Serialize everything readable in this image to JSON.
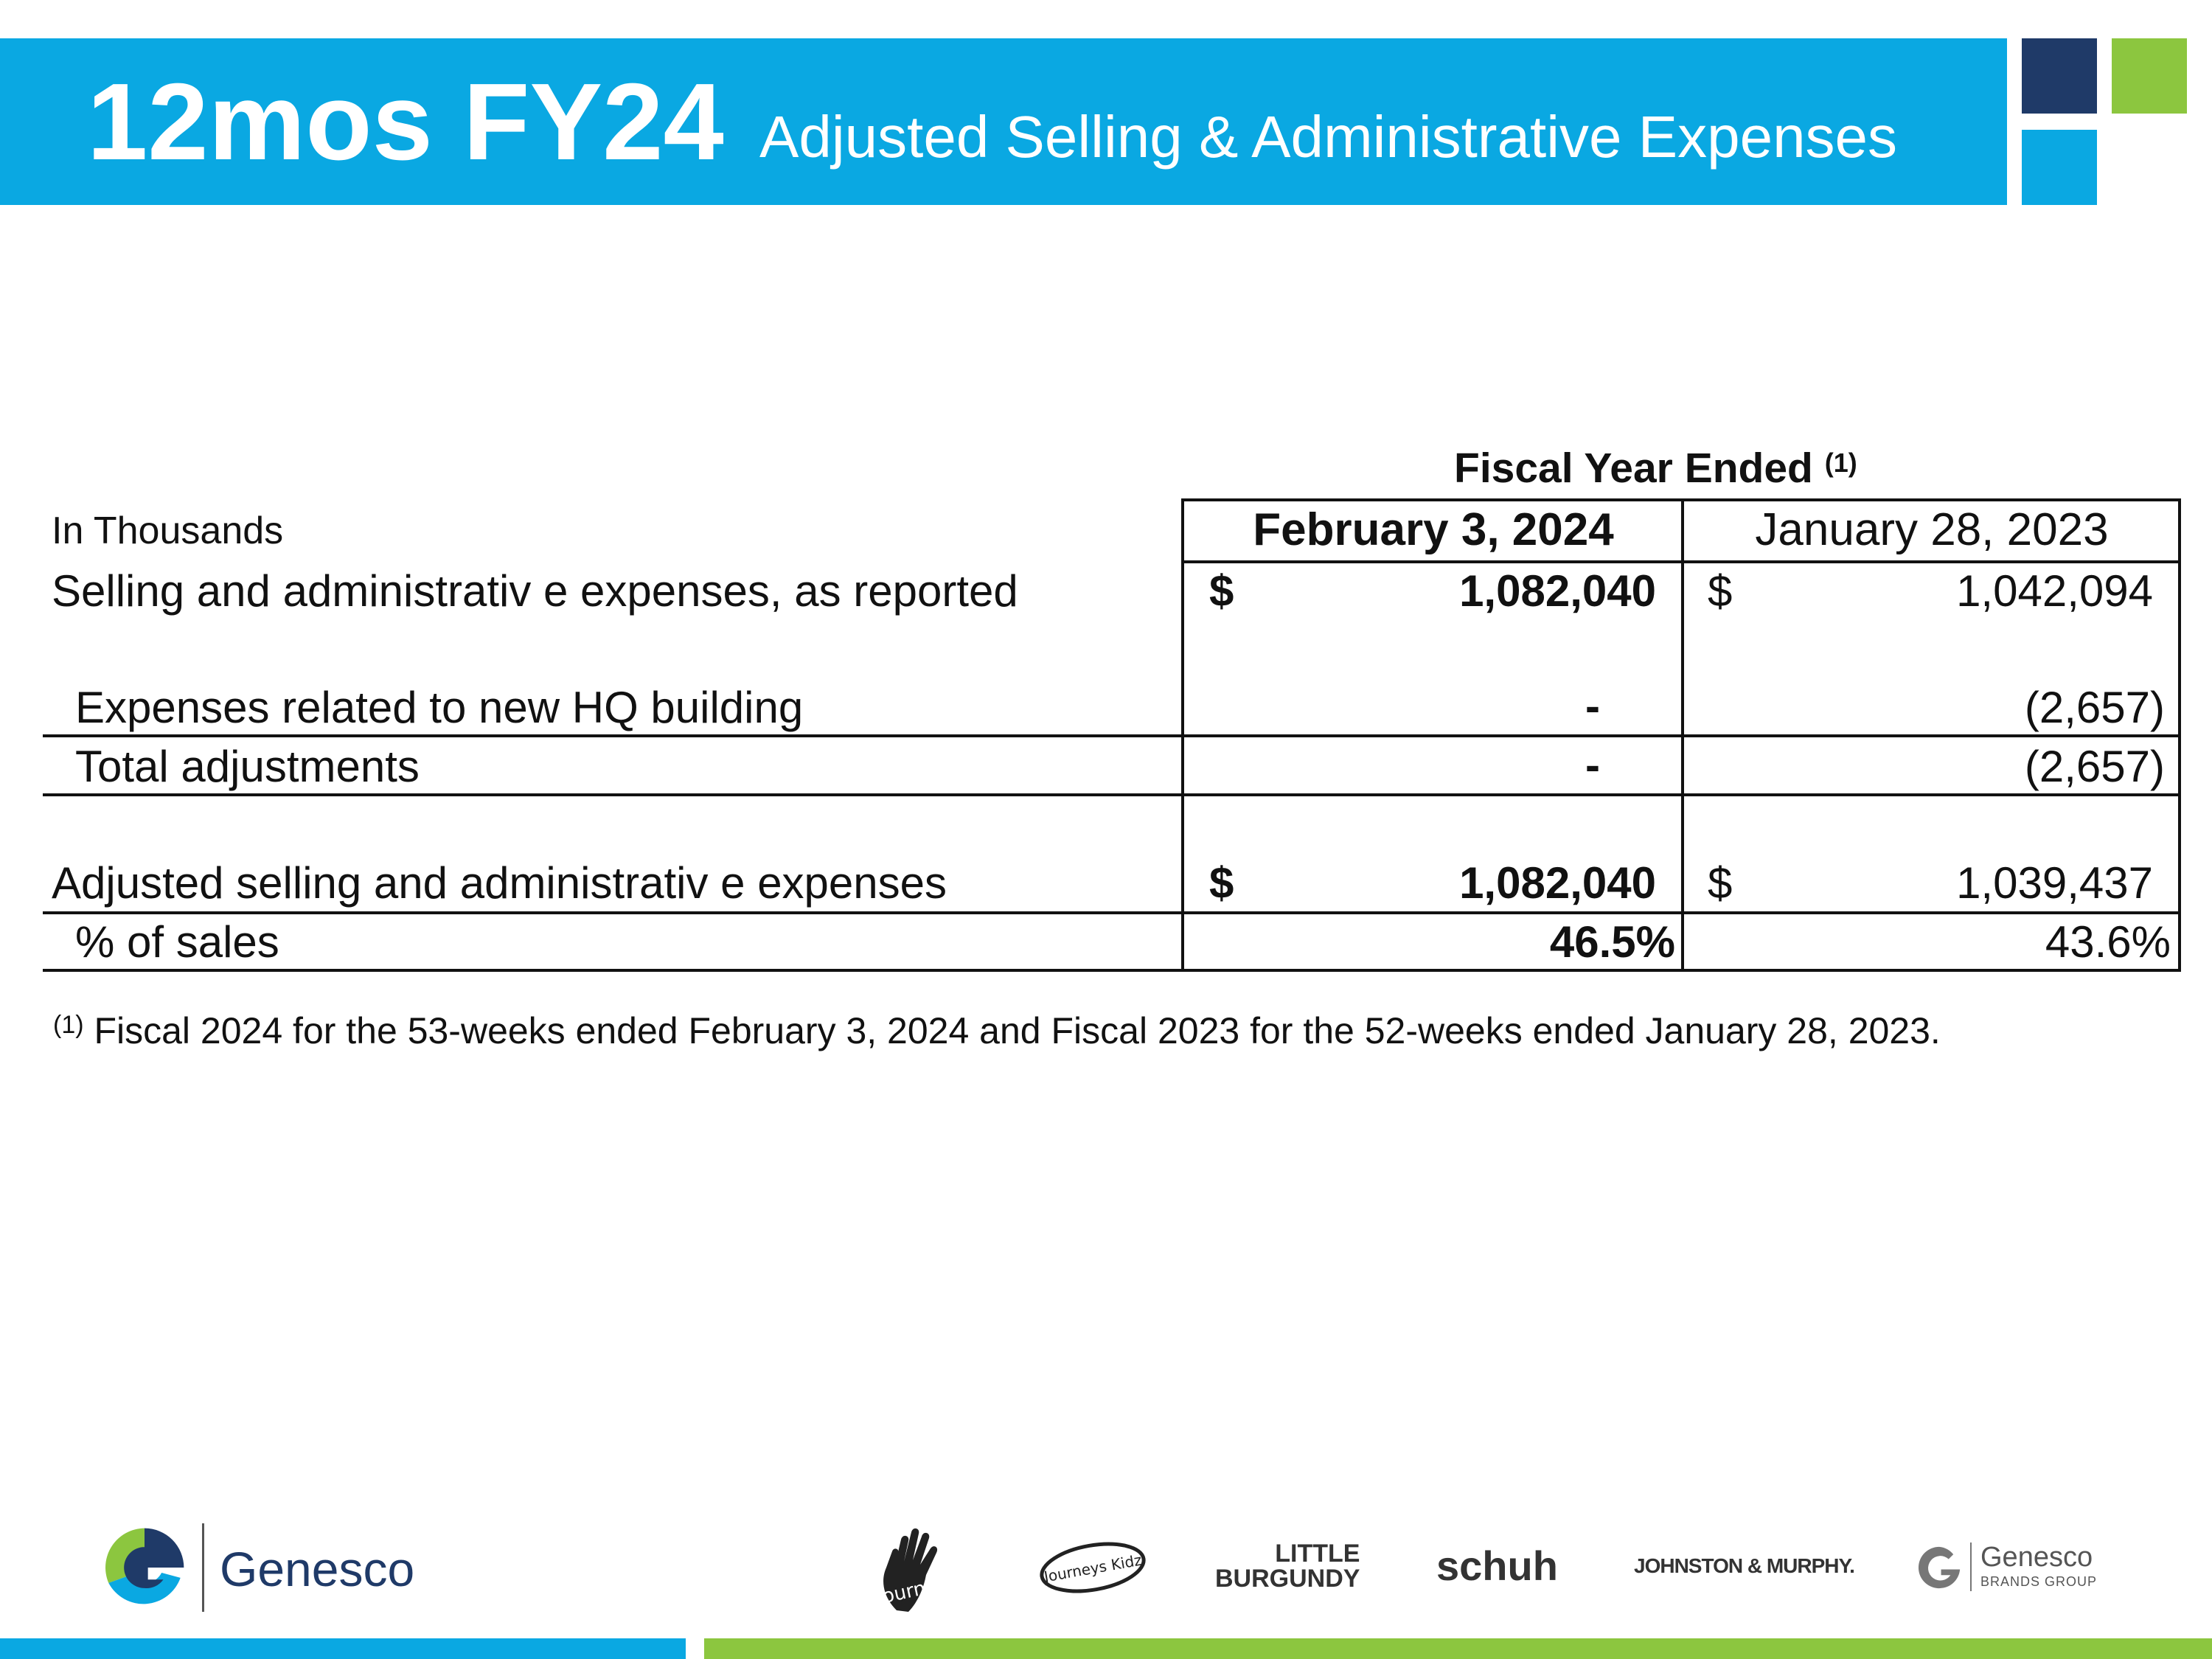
{
  "header": {
    "title_main": "12mos FY24",
    "title_sub": "Adjusted Selling & Administrative Expenses",
    "banner_color": "#0aa8e2",
    "accent_navy": "#1f3a68",
    "accent_green": "#8cc63f"
  },
  "table": {
    "group_header": "Fiscal Year Ended",
    "group_header_note": "(1)",
    "units_label": "In Thousands",
    "columns": [
      "February 3, 2024",
      "January 28, 2023"
    ],
    "rows": [
      {
        "label": "Selling and administrativ e expenses, as reported",
        "currency": "$",
        "col1": "1,082,040",
        "col2": "1,042,094"
      },
      {
        "label": "Expenses related to new HQ building",
        "col1": "-",
        "col2": "(2,657)"
      },
      {
        "label": "Total adjustments",
        "col1": "-",
        "col2": "(2,657)"
      },
      {
        "label": "Adjusted selling and administrativ e expenses",
        "currency": "$",
        "col1": "1,082,040",
        "col2": "1,039,437"
      },
      {
        "label": "% of sales",
        "col1": "46.5%",
        "col2": "43.6%"
      }
    ]
  },
  "footnote": {
    "marker": "(1)",
    "text": "Fiscal 2024 for the 53-weeks ended February 3, 2024 and Fiscal 2023 for the 52-weeks ended January 28, 2023."
  },
  "footer": {
    "company_name": "Genesco",
    "brands": [
      "Journeys",
      "Journeys Kidz",
      "LITTLE",
      "BURGUNDY",
      "schuh",
      "JOHNSTON & MURPHY."
    ],
    "brands_group_name": "Genesco",
    "brands_group_sub": "BRANDS GROUP",
    "logo_icons": [
      "genesco-g-logo-icon",
      "journeys-hand-logo-icon",
      "journeys-kidz-logo-icon",
      "genesco-brands-group-icon"
    ]
  }
}
